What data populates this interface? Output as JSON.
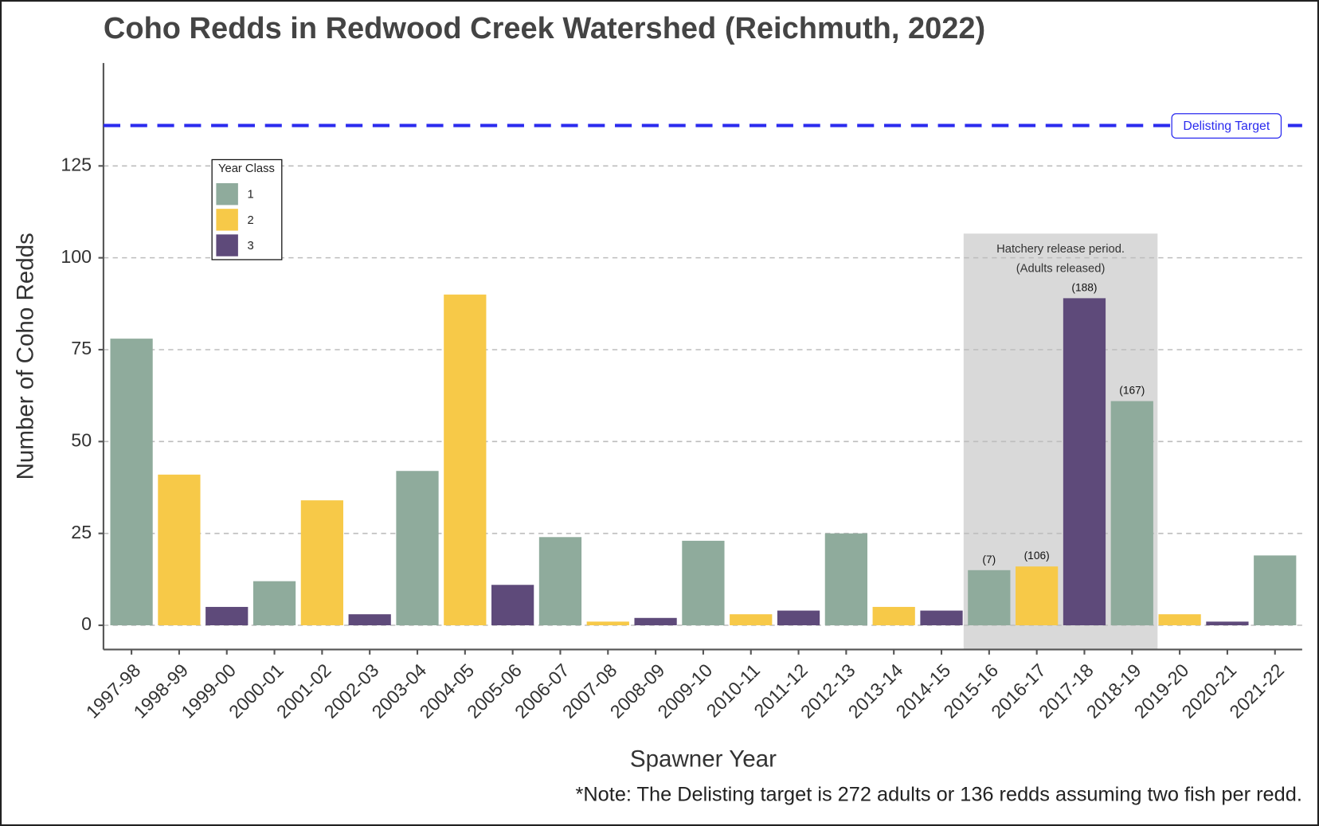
{
  "chart_data": {
    "type": "bar",
    "title": "Coho Redds in Redwood Creek Watershed (Reichmuth, 2022)",
    "x_label": "Spawner Year",
    "y_label": "Number of Coho Redds",
    "note": "*Note: The Delisting target is 272 adults or 136 redds assuming two fish per redd.",
    "categories": [
      "1997-98",
      "1998-99",
      "1999-00",
      "2000-01",
      "2001-02",
      "2002-03",
      "2003-04",
      "2004-05",
      "2005-06",
      "2006-07",
      "2007-08",
      "2008-09",
      "2009-10",
      "2010-11",
      "2011-12",
      "2012-13",
      "2013-14",
      "2014-15",
      "2015-16",
      "2016-17",
      "2017-18",
      "2018-19",
      "2019-20",
      "2020-21",
      "2021-22"
    ],
    "legend_title": "Year Class",
    "series": [
      {
        "name": "1",
        "color": "#8fab9c",
        "values": [
          78,
          null,
          null,
          12,
          null,
          null,
          42,
          null,
          null,
          24,
          null,
          null,
          23,
          null,
          null,
          25,
          null,
          null,
          15,
          null,
          null,
          61,
          null,
          null,
          19
        ]
      },
      {
        "name": "2",
        "color": "#f7c948",
        "values": [
          null,
          41,
          null,
          null,
          34,
          null,
          null,
          90,
          null,
          null,
          1,
          null,
          null,
          3,
          null,
          null,
          5,
          null,
          null,
          16,
          null,
          null,
          3,
          null,
          null
        ]
      },
      {
        "name": "3",
        "color": "#5e4a7a",
        "values": [
          null,
          null,
          5,
          null,
          null,
          3,
          null,
          null,
          11,
          null,
          null,
          2,
          null,
          null,
          4,
          null,
          null,
          4,
          null,
          null,
          89,
          null,
          null,
          1,
          null
        ]
      }
    ],
    "ylim": [
      -6.6,
      153
    ],
    "yticks": [
      0,
      25,
      50,
      75,
      100,
      125
    ],
    "grid": true,
    "target": {
      "value": 136,
      "label": "Delisting Target",
      "color": "#2b2bef"
    },
    "hatchery": {
      "start": "2015-16",
      "end": "2018-19",
      "lines": [
        "Hatchery release period.",
        "(Adults released)"
      ],
      "adults_released": [
        {
          "category": "2015-16",
          "value": 7,
          "label": "(7)"
        },
        {
          "category": "2016-17",
          "value": 106,
          "label": "(106)"
        },
        {
          "category": "2017-18",
          "value": 188,
          "label": "(188)"
        },
        {
          "category": "2018-19",
          "value": 167,
          "label": "(167)"
        }
      ]
    }
  }
}
